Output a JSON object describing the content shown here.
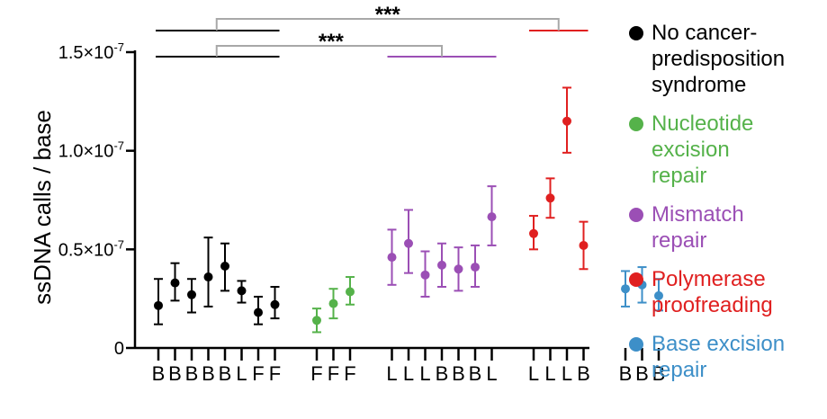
{
  "chart_data": {
    "type": "scatter",
    "ylabel": "ssDNA calls / base",
    "ylim": [
      0,
      1.5e-07
    ],
    "y_ticks": [
      {
        "value": 0,
        "label": "0"
      },
      {
        "value": 5e-08,
        "label": "0.5×10",
        "exp": "-7"
      },
      {
        "value": 1e-07,
        "label": "1.0×10",
        "exp": "-7"
      },
      {
        "value": 1.5e-07,
        "label": "1.5×10",
        "exp": "-7"
      }
    ],
    "series": [
      {
        "name": "No cancer-\npredisposition\nsyndrome",
        "color": "#000000",
        "x_labels": [
          "B",
          "B",
          "B",
          "B",
          "B",
          "L",
          "F",
          "F"
        ],
        "values": [
          2.15e-08,
          3.3e-08,
          2.7e-08,
          3.6e-08,
          4.15e-08,
          2.9e-08,
          1.8e-08,
          2.2e-08
        ],
        "err_low": [
          1.2e-08,
          2.4e-08,
          1.8e-08,
          2.1e-08,
          2.9e-08,
          2.3e-08,
          1.2e-08,
          1.5e-08
        ],
        "err_high": [
          3.5e-08,
          4.3e-08,
          3.5e-08,
          5.6e-08,
          5.3e-08,
          3.4e-08,
          2.6e-08,
          3.1e-08
        ]
      },
      {
        "name": "Nucleotide\nexcision\nrepair",
        "color": "#55b24a",
        "x_labels": [
          "F",
          "F",
          "F"
        ],
        "values": [
          1.4e-08,
          2.25e-08,
          2.85e-08
        ],
        "err_low": [
          8e-09,
          1.5e-08,
          2.2e-08
        ],
        "err_high": [
          2e-08,
          3e-08,
          3.6e-08
        ]
      },
      {
        "name": "Mismatch\nrepair",
        "color": "#9b4fb5",
        "x_labels": [
          "L",
          "L",
          "L",
          "B",
          "B",
          "B",
          "L"
        ],
        "values": [
          4.6e-08,
          5.3e-08,
          3.7e-08,
          4.2e-08,
          4e-08,
          4.1e-08,
          6.65e-08
        ],
        "err_low": [
          3.2e-08,
          3.8e-08,
          2.6e-08,
          3.1e-08,
          2.9e-08,
          3.1e-08,
          5.2e-08
        ],
        "err_high": [
          6e-08,
          7e-08,
          4.9e-08,
          5.3e-08,
          5.1e-08,
          5.2e-08,
          8.2e-08
        ]
      },
      {
        "name": "Polymerase\nproofreading",
        "color": "#e02020",
        "x_labels": [
          "L",
          "L",
          "L",
          "B"
        ],
        "values": [
          5.8e-08,
          7.6e-08,
          1.15e-07,
          5.2e-08
        ],
        "err_low": [
          5e-08,
          6.6e-08,
          9.9e-08,
          4e-08
        ],
        "err_high": [
          6.7e-08,
          8.6e-08,
          1.32e-07,
          6.4e-08
        ]
      },
      {
        "name": "Base excision\nrepair",
        "color": "#3d8fc8",
        "x_labels": [
          "B",
          "B",
          "B"
        ],
        "values": [
          3e-08,
          3.2e-08,
          2.65e-08
        ],
        "err_low": [
          2.1e-08,
          2.3e-08,
          1.9e-08
        ],
        "err_high": [
          3.9e-08,
          4.1e-08,
          3.5e-08
        ]
      }
    ],
    "annotations": [
      {
        "text": "***",
        "groups": [
          "No cancer-predisposition syndrome",
          "Polymerase proofreading"
        ]
      },
      {
        "text": "***",
        "groups": [
          "No cancer-predisposition syndrome",
          "Mismatch repair"
        ]
      }
    ],
    "legend_position": "right"
  }
}
